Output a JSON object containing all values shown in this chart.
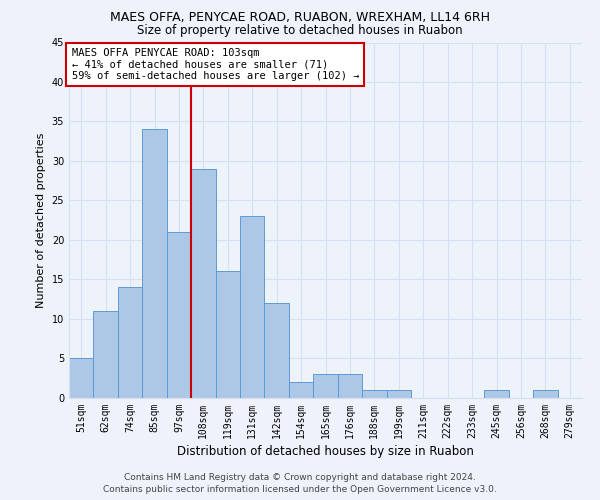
{
  "title": "MAES OFFA, PENYCAE ROAD, RUABON, WREXHAM, LL14 6RH",
  "subtitle": "Size of property relative to detached houses in Ruabon",
  "xlabel": "Distribution of detached houses by size in Ruabon",
  "ylabel": "Number of detached properties",
  "categories": [
    "51sqm",
    "62sqm",
    "74sqm",
    "85sqm",
    "97sqm",
    "108sqm",
    "119sqm",
    "131sqm",
    "142sqm",
    "154sqm",
    "165sqm",
    "176sqm",
    "188sqm",
    "199sqm",
    "211sqm",
    "222sqm",
    "233sqm",
    "245sqm",
    "256sqm",
    "268sqm",
    "279sqm"
  ],
  "values": [
    5,
    11,
    14,
    34,
    21,
    29,
    16,
    23,
    12,
    2,
    3,
    3,
    1,
    1,
    0,
    0,
    0,
    1,
    0,
    1,
    0
  ],
  "bar_color": "#adc8e6",
  "bar_edge_color": "#5b9bd5",
  "annotation_text_line1": "MAES OFFA PENYCAE ROAD: 103sqm",
  "annotation_text_line2": "← 41% of detached houses are smaller (71)",
  "annotation_text_line3": "59% of semi-detached houses are larger (102) →",
  "annotation_box_color": "#ffffff",
  "annotation_box_edge": "#cc0000",
  "vline_color": "#cc0000",
  "vline_x_index": 5,
  "ylim": [
    0,
    45
  ],
  "yticks": [
    0,
    5,
    10,
    15,
    20,
    25,
    30,
    35,
    40,
    45
  ],
  "footer_line1": "Contains HM Land Registry data © Crown copyright and database right 2024.",
  "footer_line2": "Contains public sector information licensed under the Open Government Licence v3.0.",
  "background_color": "#eef2fa",
  "grid_color": "#d8dff0",
  "title_fontsize": 9,
  "subtitle_fontsize": 8.5,
  "axis_label_fontsize": 8,
  "tick_fontsize": 7,
  "footer_fontsize": 6.5
}
